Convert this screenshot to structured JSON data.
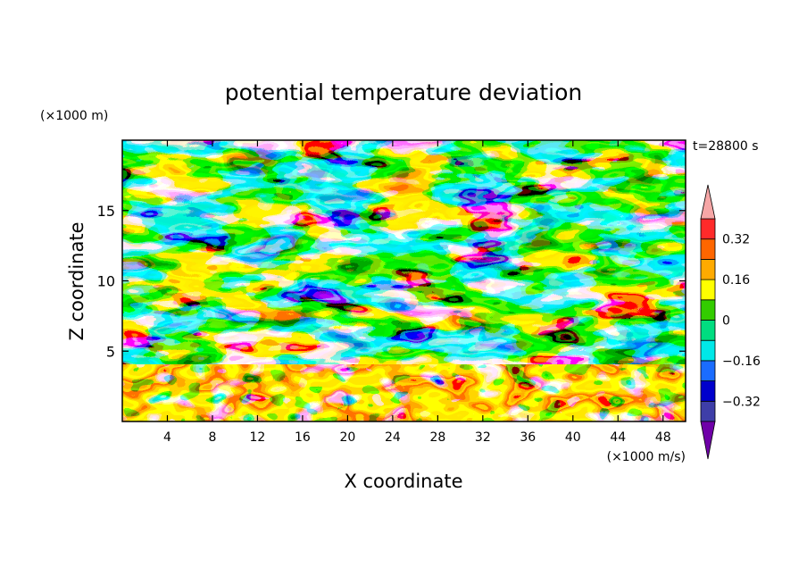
{
  "chart_data": {
    "type": "heatmap",
    "title": "potential temperature deviation",
    "xlabel": "X coordinate",
    "ylabel": "Z coordinate",
    "x_unit": "(×1000 m/s)",
    "y_unit": "(×1000 m)",
    "time_label": "t=28800 s",
    "xlim": [
      0,
      50
    ],
    "ylim": [
      0,
      20
    ],
    "x_ticks": [
      4,
      8,
      12,
      16,
      20,
      24,
      28,
      32,
      36,
      40,
      44,
      48
    ],
    "y_ticks": [
      5,
      10,
      15
    ],
    "grid": false,
    "legend": "right",
    "colorbar": {
      "levels": [
        -0.4,
        -0.32,
        -0.24,
        -0.16,
        -0.08,
        0,
        0.08,
        0.16,
        0.24,
        0.32,
        0.4
      ],
      "tick_values": [
        -0.32,
        -0.16,
        0,
        0.16,
        0.32
      ],
      "tick_labels": [
        "−0.32",
        "−0.16",
        "0",
        "0.16",
        "0.32"
      ],
      "colors": [
        "#6f00a8",
        "#3e3ea8",
        "#0000cc",
        "#1a6cff",
        "#00e8e8",
        "#00dd80",
        "#33cc00",
        "#ffff00",
        "#ffaa00",
        "#ff6600",
        "#ff2a2a",
        "#f6a6a6"
      ],
      "extend": "both"
    }
  }
}
